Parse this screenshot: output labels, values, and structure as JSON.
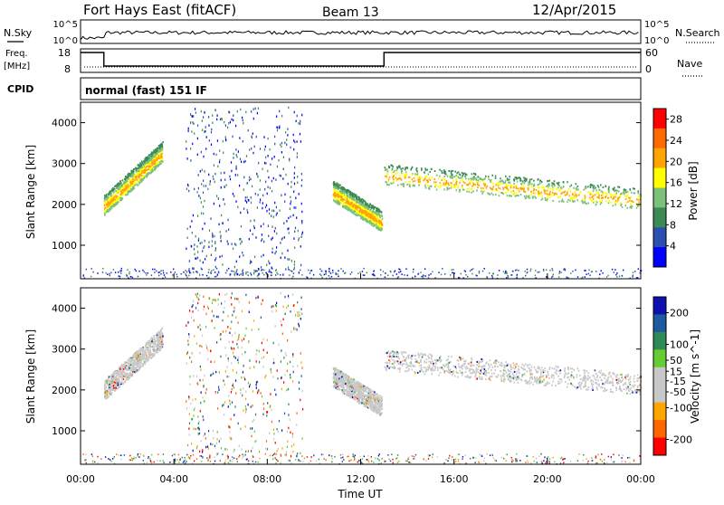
{
  "header": {
    "title": "Fort Hays East (fitACF)",
    "beam": "Beam 13",
    "date": "12/Apr/2015"
  },
  "status_panels": {
    "nsky_label": "N.Sky",
    "nsearch_label": "N.Search",
    "noise_ticks": [
      "10^5",
      "10^0"
    ],
    "freq_label": "Freq.",
    "freq_unit": "[MHz]",
    "freq_ticks": [
      "18",
      "8"
    ],
    "nave_label": "Nave",
    "nave_ticks": [
      "60",
      "0"
    ],
    "cpid_label": "CPID",
    "cpid_value": "normal (fast) 151 IF"
  },
  "colors": {
    "power_scale": [
      "#0000ff",
      "#2b50b0",
      "#3e8a55",
      "#7cc07a",
      "#ffff00",
      "#ffa500",
      "#ff6a00",
      "#ff0000"
    ],
    "velocity_scale": [
      "#ff0000",
      "#ff6600",
      "#ffa500",
      "#c8c8c8",
      "#c8c8c8",
      "#66cc33",
      "#2e8b57",
      "#1e5aa0",
      "#1010b0"
    ]
  },
  "chart_data": [
    {
      "type": "heatmap",
      "name": "power",
      "ylabel": "Slant Range [km]",
      "y_ticks": [
        1000,
        2000,
        3000,
        4000
      ],
      "ylim": [
        180,
        4500
      ],
      "x_ticks": [
        "00:00",
        "04:00",
        "08:00",
        "12:00",
        "16:00",
        "20:00",
        "00:00"
      ],
      "xlim_hours": [
        0,
        24
      ],
      "colorbar": {
        "label": "Power [dB]",
        "ticks": [
          4,
          8,
          12,
          16,
          20,
          24,
          28
        ],
        "range": [
          0,
          30
        ]
      },
      "regions": [
        {
          "t_start": 1.0,
          "t_end": 3.5,
          "range_start": 1950,
          "range_end": 3250,
          "level": 12
        },
        {
          "t_start": 10.8,
          "t_end": 12.9,
          "range_start": 2300,
          "range_end": 1550,
          "level": 16
        },
        {
          "t_start": 13.0,
          "t_end": 24.0,
          "range_start": 2700,
          "range_end": 2100,
          "level": 12
        }
      ]
    },
    {
      "type": "heatmap",
      "name": "velocity",
      "ylabel": "Slant Range [km]",
      "y_ticks": [
        1000,
        2000,
        3000,
        4000
      ],
      "ylim": [
        180,
        4500
      ],
      "x_ticks": [
        "00:00",
        "04:00",
        "08:00",
        "12:00",
        "16:00",
        "20:00",
        "00:00"
      ],
      "xlim_hours": [
        0,
        24
      ],
      "xlabel": "Time UT",
      "colorbar": {
        "label": "Velocity [m s^-1]",
        "ticks": [
          200,
          100,
          50,
          15,
          -15,
          -50,
          -100,
          -200
        ],
        "range": [
          -250,
          250
        ]
      }
    }
  ]
}
